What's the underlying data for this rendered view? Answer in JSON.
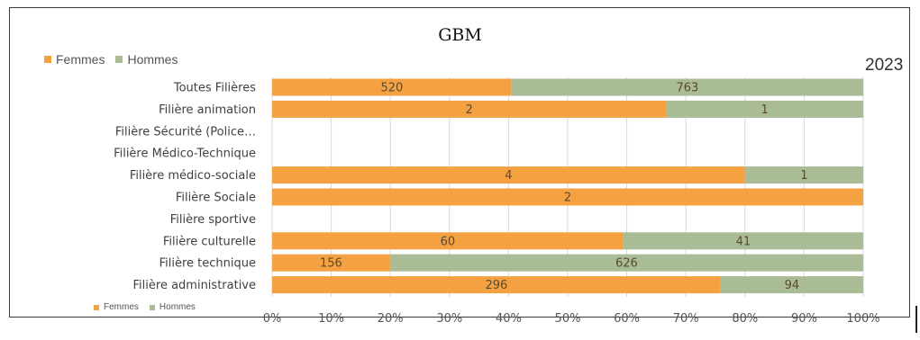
{
  "chart_data": {
    "type": "bar",
    "stacked": "percent",
    "orientation": "horizontal",
    "title": "GBM",
    "year_label": "2023",
    "categories": [
      "Toutes Filières",
      "Filière animation",
      "Filière Sécurité (Police…",
      "Filière Médico-Technique",
      "Filière médico-sociale",
      "Filière Sociale",
      "Filière sportive",
      "Filière culturelle",
      "Filière technique",
      "Filière administrative"
    ],
    "series": [
      {
        "name": "Femmes",
        "color": "#f4a142",
        "values": [
          520,
          2,
          null,
          null,
          4,
          2,
          null,
          60,
          156,
          296
        ]
      },
      {
        "name": "Hommes",
        "color": "#a9bc95",
        "values": [
          763,
          1,
          null,
          null,
          1,
          null,
          null,
          41,
          626,
          94
        ]
      }
    ],
    "x_ticks": [
      "0%",
      "10%",
      "20%",
      "30%",
      "40%",
      "50%",
      "60%",
      "70%",
      "80%",
      "90%",
      "100%"
    ],
    "xlim": [
      0,
      100
    ],
    "grid": true,
    "legend": [
      "top-left",
      "bottom-left"
    ]
  },
  "legend": {
    "femmes": "Femmes",
    "hommes": "Hommes",
    "femmes_color": "#f4a142",
    "hommes_color": "#a9bc95"
  }
}
